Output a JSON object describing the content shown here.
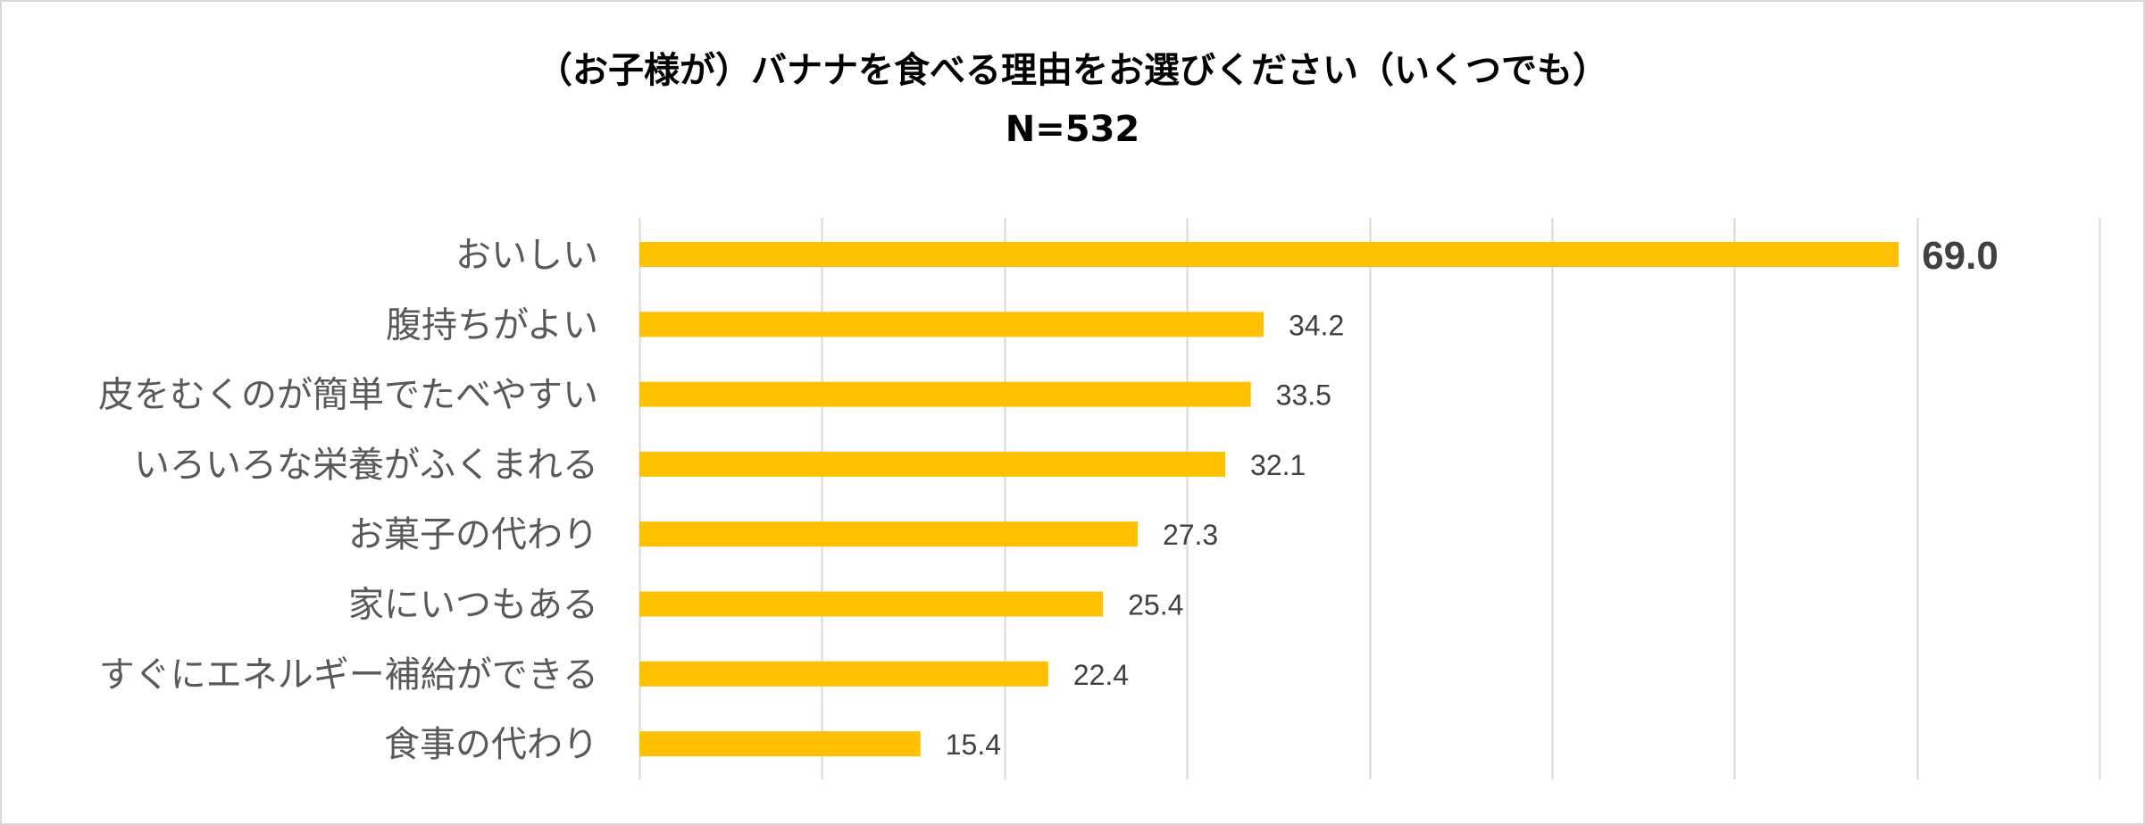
{
  "chart_data": {
    "type": "bar",
    "orientation": "horizontal",
    "title": "（お子様が）バナナを食べる理由をお選びください（いくつでも）",
    "subtitle": "N=532",
    "categories": [
      "おいしい",
      "腹持ちがよい",
      "皮をむくのが簡単でたべやすい",
      "いろいろな栄養がふくまれる",
      "お菓子の代わり",
      "家にいつもある",
      "すぐにエネルギー補給ができる",
      "食事の代わり"
    ],
    "values": [
      69.0,
      34.2,
      33.5,
      32.1,
      27.3,
      25.4,
      22.4,
      15.4
    ],
    "value_labels": [
      "69.0",
      "34.2",
      "33.5",
      "32.1",
      "27.3",
      "25.4",
      "22.4",
      "15.4"
    ],
    "xlim": [
      0,
      80
    ],
    "x_gridline_step": 10,
    "grid": true,
    "legend": "none",
    "xlabel": "",
    "ylabel": "",
    "emphasized_value_index": 0
  },
  "colors": {
    "bar": "#ffc000",
    "gridline": "#d9d9d9",
    "border": "#d9d9d9"
  }
}
